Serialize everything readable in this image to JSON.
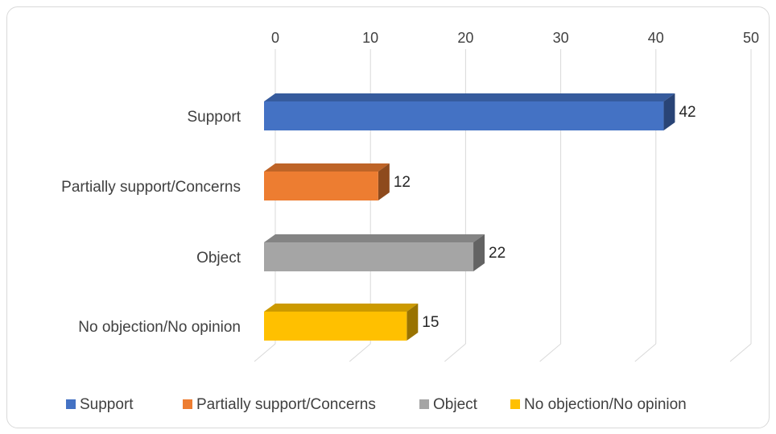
{
  "chart_data": {
    "type": "bar",
    "orientation": "horizontal",
    "style": "3d",
    "categories": [
      "Support",
      "Partially support/Concerns",
      "Object",
      "No objection/No opinion"
    ],
    "values": [
      42,
      12,
      22,
      15
    ],
    "colors": [
      "#4472C4",
      "#ED7D31",
      "#A5A5A5",
      "#FFC000"
    ],
    "xlim": [
      0,
      50
    ],
    "ticks": [
      "0",
      "10",
      "20",
      "30",
      "40",
      "50"
    ],
    "axis_position": "top",
    "grid": true,
    "data_labels": [
      "42",
      "12",
      "22",
      "15"
    ],
    "legend": {
      "position": "bottom",
      "entries": [
        "Support",
        "Partially support/Concerns",
        "Object",
        "No objection/No opinion"
      ]
    }
  }
}
